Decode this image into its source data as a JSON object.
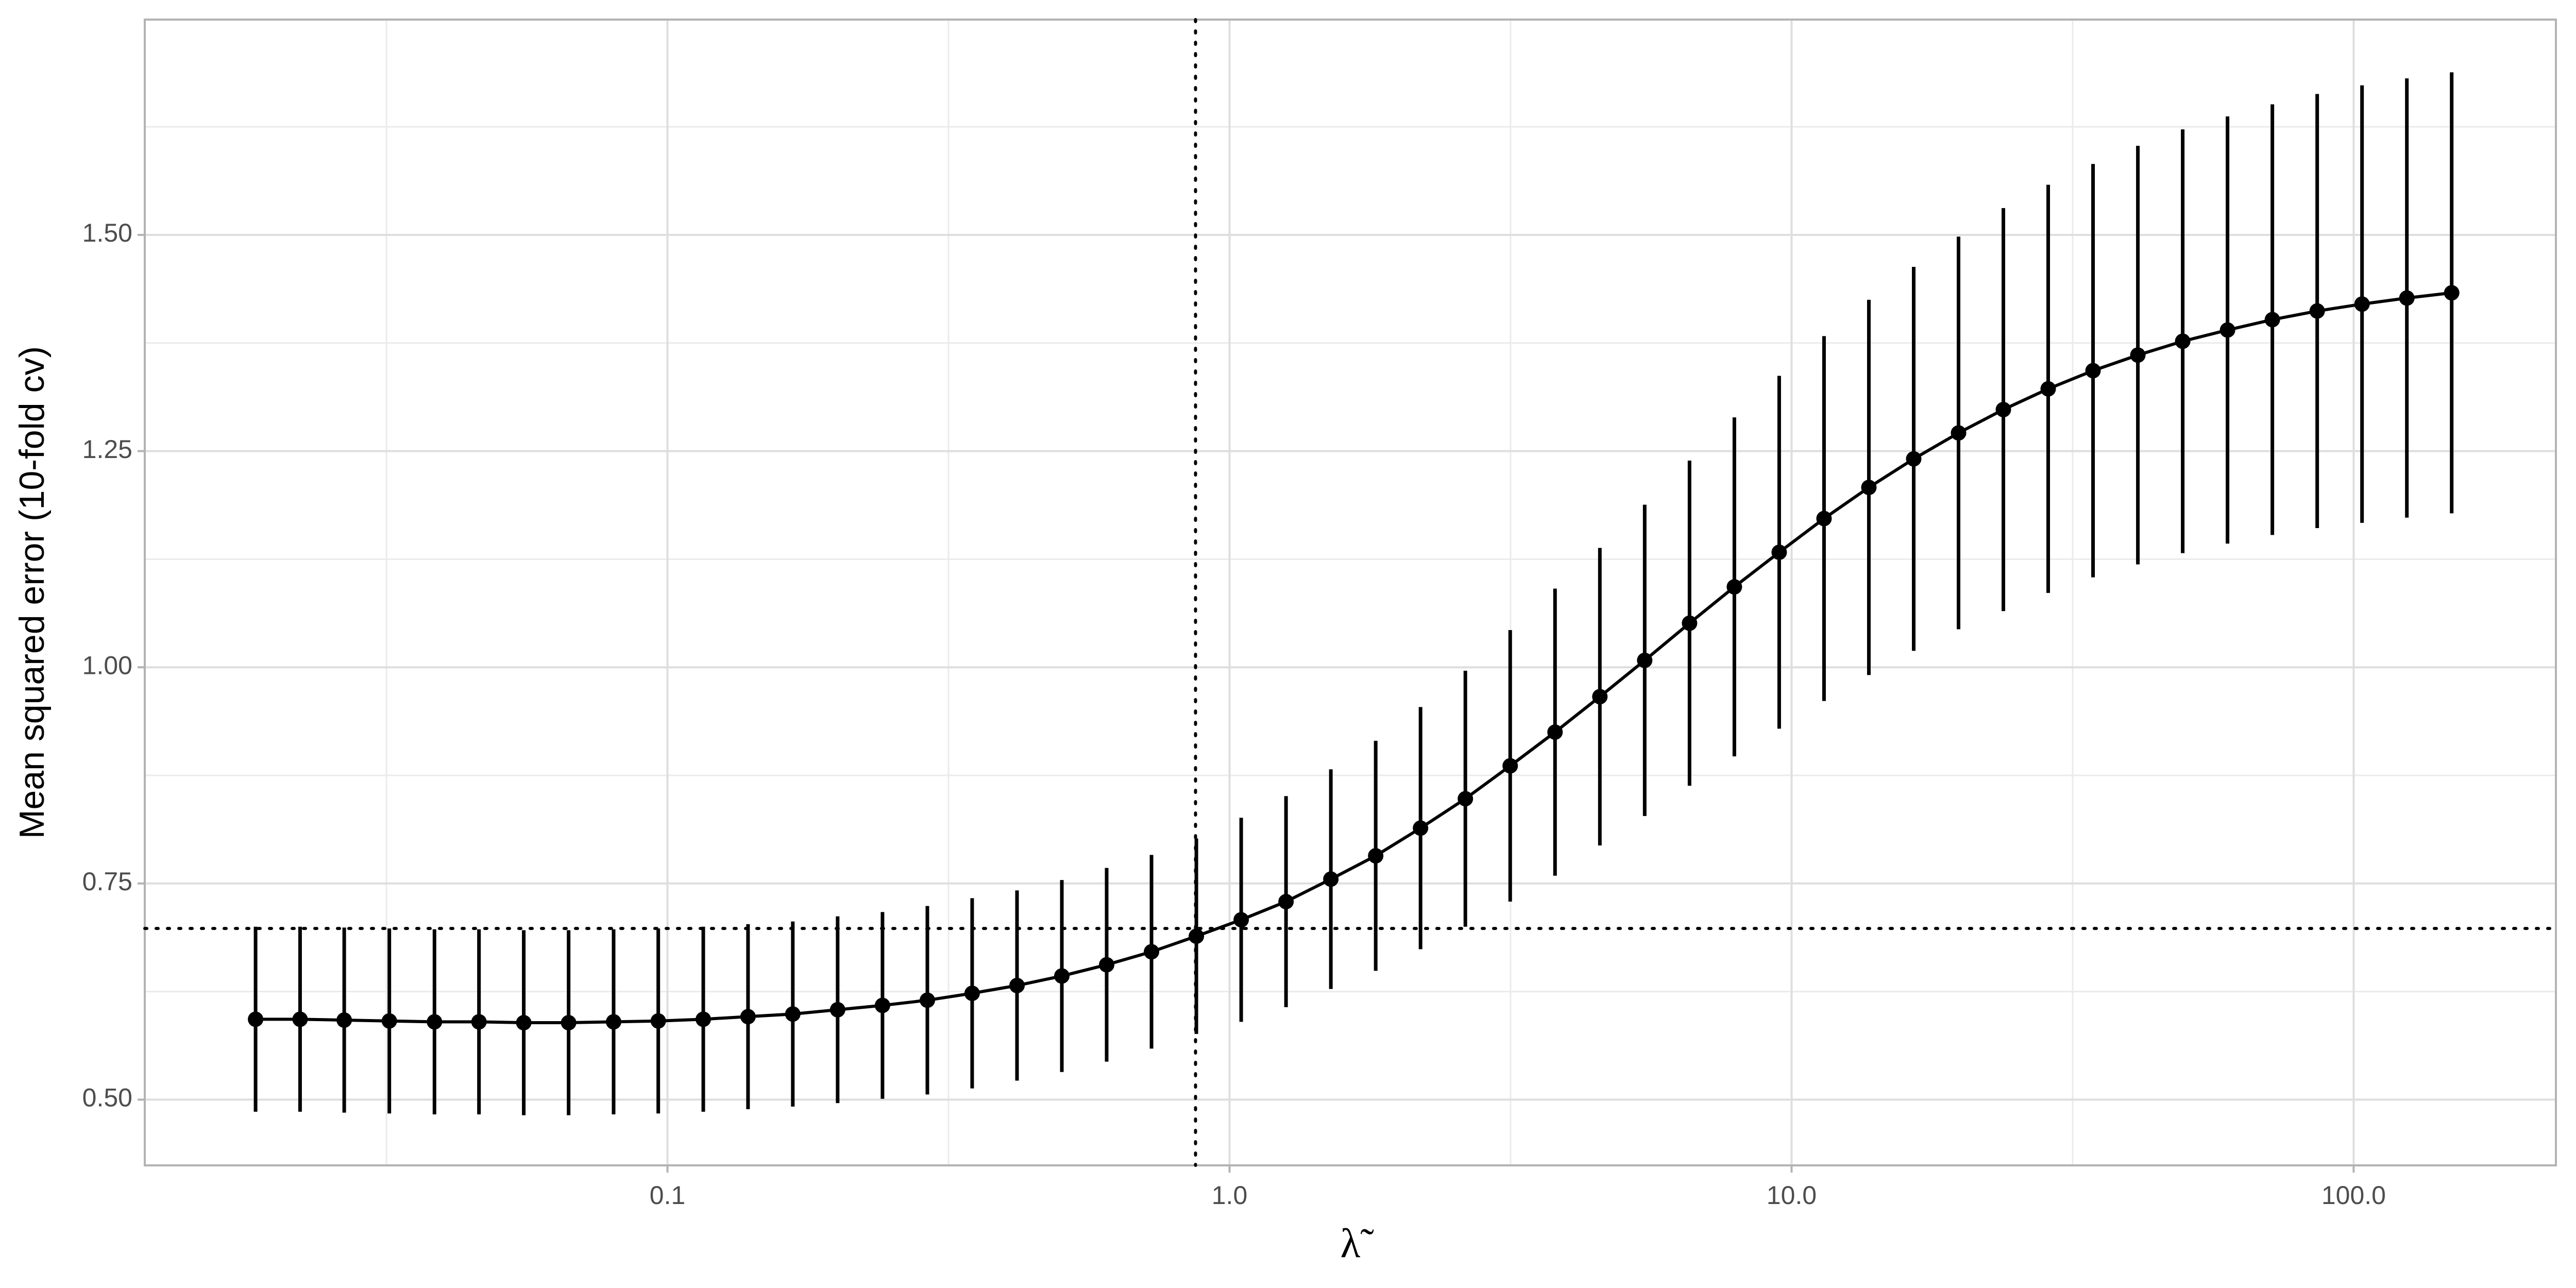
{
  "chart_data": {
    "type": "errorbar",
    "x_label": "λ̃",
    "y_label": "Mean squared error (10-fold cv)",
    "x": [
      0.0185,
      0.0222,
      0.0266,
      0.032,
      0.0385,
      0.0462,
      0.0555,
      0.0667,
      0.0802,
      0.0963,
      0.1158,
      0.1391,
      0.1671,
      0.2008,
      0.2413,
      0.29,
      0.3484,
      0.4187,
      0.5031,
      0.6045,
      0.7264,
      0.8729,
      1.0489,
      1.2604,
      1.5145,
      1.8199,
      2.1868,
      2.6277,
      3.1575,
      3.7941,
      4.5591,
      5.4783,
      6.5828,
      7.91,
      9.5048,
      11.421,
      13.724,
      16.491,
      19.816,
      23.811,
      28.611,
      34.38,
      41.311,
      49.64,
      59.648,
      71.673,
      86.124,
      103.49,
      124.35,
      149.42
    ],
    "values": [
      0.593,
      0.593,
      0.592,
      0.591,
      0.59,
      0.59,
      0.589,
      0.589,
      0.59,
      0.591,
      0.593,
      0.596,
      0.599,
      0.604,
      0.609,
      0.615,
      0.623,
      0.632,
      0.643,
      0.656,
      0.671,
      0.689,
      0.708,
      0.729,
      0.755,
      0.782,
      0.814,
      0.848,
      0.886,
      0.925,
      0.966,
      1.008,
      1.051,
      1.093,
      1.133,
      1.172,
      1.208,
      1.241,
      1.271,
      1.298,
      1.322,
      1.343,
      1.361,
      1.377,
      1.39,
      1.402,
      1.412,
      1.42,
      1.427,
      1.433
    ],
    "errors": [
      0.107,
      0.107,
      0.107,
      0.107,
      0.107,
      0.107,
      0.107,
      0.107,
      0.107,
      0.107,
      0.107,
      0.107,
      0.107,
      0.108,
      0.108,
      0.109,
      0.11,
      0.11,
      0.111,
      0.112,
      0.112,
      0.113,
      0.118,
      0.122,
      0.127,
      0.133,
      0.14,
      0.148,
      0.157,
      0.166,
      0.172,
      0.18,
      0.188,
      0.196,
      0.204,
      0.211,
      0.217,
      0.222,
      0.227,
      0.233,
      0.236,
      0.239,
      0.242,
      0.245,
      0.247,
      0.249,
      0.251,
      0.253,
      0.254,
      0.255
    ],
    "color": "#000000",
    "xscale": "log",
    "xlim": [
      0.01175,
      229
    ],
    "ylim": [
      0.424,
      1.749
    ],
    "xticks": [
      0.1,
      {
        "value": 1,
        "label": "1.0"
      },
      {
        "value": 10,
        "label": "10.0"
      },
      {
        "value": 100,
        "label": "100.0"
      }
    ],
    "yticks": [
      {
        "value": 0.5,
        "label": "0.50"
      },
      {
        "value": 0.75,
        "label": "0.75"
      },
      {
        "value": 1,
        "label": "1.00"
      },
      {
        "value": 1.25,
        "label": "1.25"
      },
      {
        "value": 1.5,
        "label": "1.50"
      }
    ],
    "grid": true,
    "vline": 0.87,
    "hline": 0.698
  }
}
